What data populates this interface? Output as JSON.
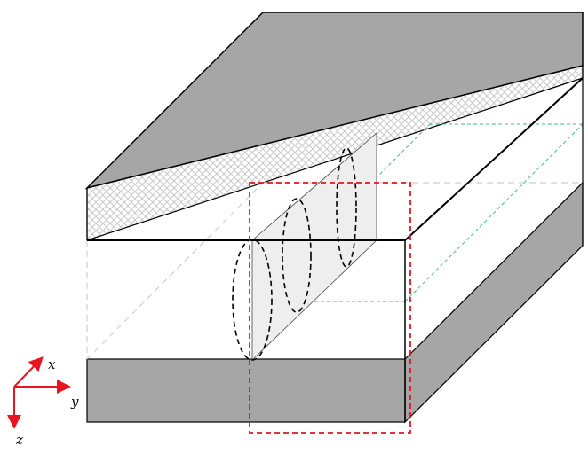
{
  "axes": {
    "x_label": "x",
    "y_label": "y",
    "z_label": "z"
  },
  "colors": {
    "slab_fill": "#a6a6a6",
    "top_wedge_fill": "#a6a6a6",
    "hatch_line": "#c8c8c8",
    "outline": "#000000",
    "hidden_edge": "#cfcfcf",
    "red_box": "#e8141e",
    "green_guides": "#3fbf7f",
    "highlight_plane": "#eeeeee",
    "axis_arrow": "#e8141e"
  }
}
